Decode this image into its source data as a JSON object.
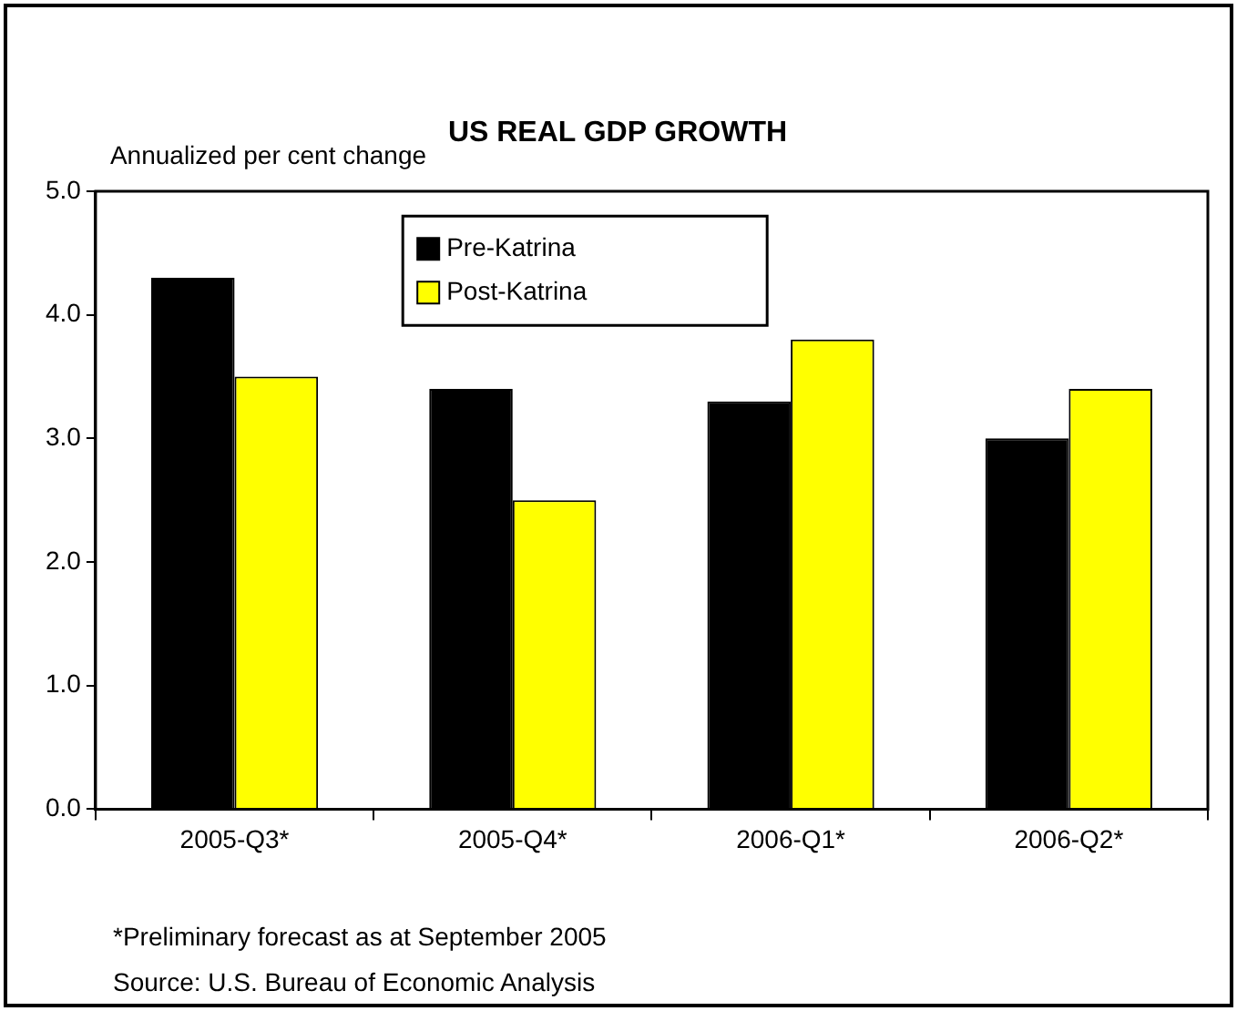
{
  "chart_data": {
    "type": "bar",
    "title": "US REAL GDP GROWTH",
    "ylabel": "Annualized per cent change",
    "categories": [
      "2005-Q3*",
      "2005-Q4*",
      "2006-Q1*",
      "2006-Q2*"
    ],
    "series": [
      {
        "name": "Pre-Katrina",
        "color": "#000000",
        "values": [
          4.3,
          3.4,
          3.3,
          3.0
        ]
      },
      {
        "name": "Post-Katrina",
        "color": "#ffff00",
        "values": [
          3.5,
          2.5,
          3.8,
          3.4
        ]
      }
    ],
    "ylim": [
      0,
      5
    ],
    "yticks": [
      {
        "value": 0,
        "label": "0.0"
      },
      {
        "value": 1,
        "label": "1.0"
      },
      {
        "value": 2,
        "label": "2.0"
      },
      {
        "value": 3,
        "label": "3.0"
      },
      {
        "value": 4,
        "label": "4.0"
      },
      {
        "value": 5,
        "label": "5.0"
      }
    ],
    "grid": false,
    "legend": "top",
    "annotations": [
      "*Preliminary forecast as at September 2005",
      "Source: U.S. Bureau of Economic Analysis"
    ]
  }
}
